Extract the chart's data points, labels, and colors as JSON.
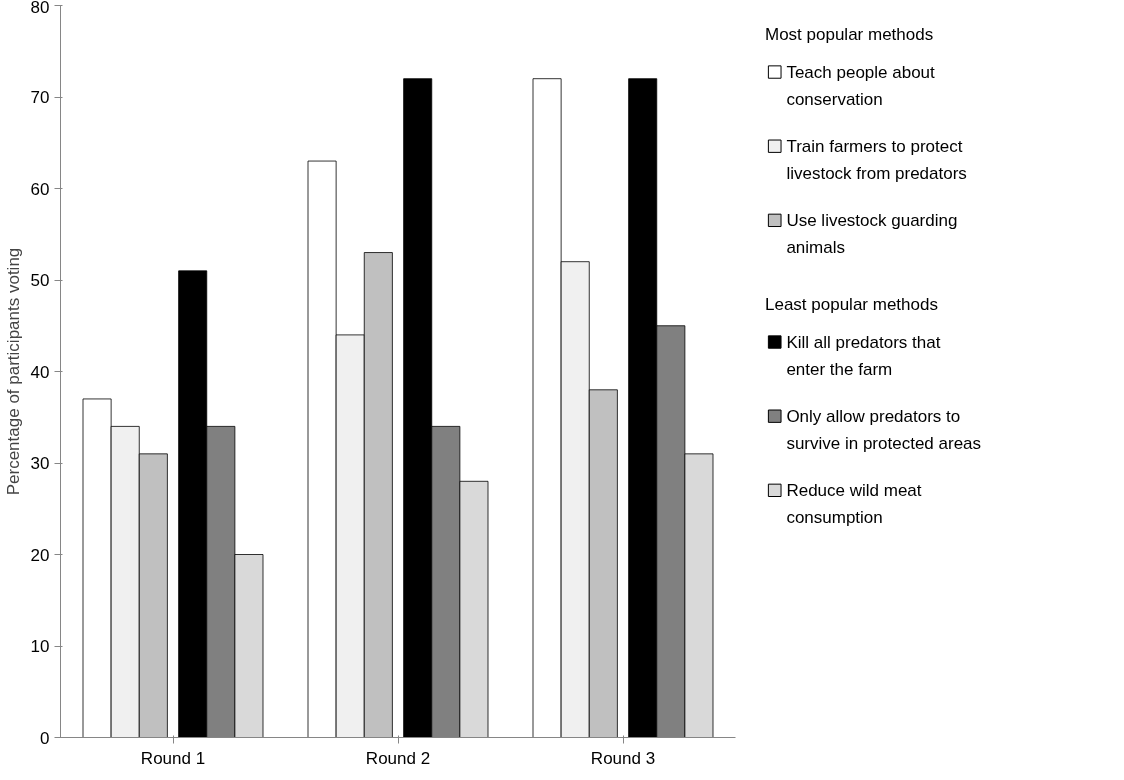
{
  "chart_data": {
    "type": "bar",
    "ylabel": "Percentage of participants voting",
    "categories": [
      "Round 1",
      "Round 2",
      "Round 3"
    ],
    "series": [
      {
        "name": "Teach people about conservation",
        "color": "#ffffff",
        "values": [
          37,
          63,
          72
        ]
      },
      {
        "name": "Train farmers to protect livestock from predators",
        "color": "#f0f0f0",
        "values": [
          34,
          44,
          52
        ]
      },
      {
        "name": "Use livestock guarding animals",
        "color": "#c0c0c0",
        "values": [
          31,
          53,
          38
        ]
      },
      {
        "name": "Kill all predators that enter the farm",
        "color": "#000000",
        "values": [
          51,
          72,
          72
        ]
      },
      {
        "name": "Only allow predators to survive in protected areas",
        "color": "#808080",
        "values": [
          34,
          34,
          45
        ]
      },
      {
        "name": "Reduce wild meat consumption",
        "color": "#d9d9d9",
        "values": [
          20,
          28,
          31
        ]
      }
    ],
    "legend_title": "Most popular methods",
    "annotations": [
      "Least popular methods"
    ],
    "ylim": [
      0,
      80
    ],
    "yticks": [
      0,
      10,
      20,
      30,
      40,
      50,
      60,
      70,
      80
    ],
    "grid": false,
    "legend": "right"
  }
}
